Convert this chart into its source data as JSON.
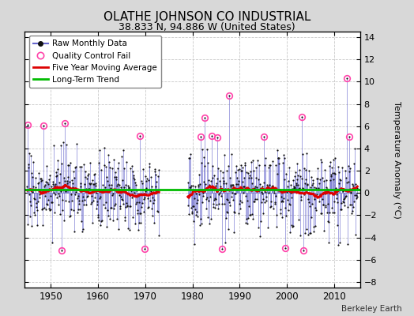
{
  "title": "OLATHE JOHNSON CO INDUSTRIAL",
  "subtitle": "38.833 N, 94.886 W (United States)",
  "ylabel": "Temperature Anomaly (°C)",
  "credit": "Berkeley Earth",
  "xlim": [
    1944.5,
    2015.5
  ],
  "ylim": [
    -8.5,
    14.5
  ],
  "yticks": [
    -8,
    -6,
    -4,
    -2,
    0,
    2,
    4,
    6,
    8,
    10,
    12,
    14
  ],
  "xticks": [
    1950,
    1960,
    1970,
    1980,
    1990,
    2000,
    2010
  ],
  "background_color": "#d8d8d8",
  "plot_background": "#ffffff",
  "raw_line_color": "#6666cc",
  "raw_dot_color": "#111111",
  "qc_fail_color": "#ff44aa",
  "moving_avg_color": "#dd0000",
  "trend_color": "#00bb00",
  "long_term_trend_value": 0.28,
  "start_year": 1945.0,
  "end_year": 2015.0,
  "gap_start": 1973.0,
  "gap_end": 1979.0,
  "seed": 17,
  "std": 1.7,
  "mean": 0.1,
  "qc_threshold": 4.8
}
